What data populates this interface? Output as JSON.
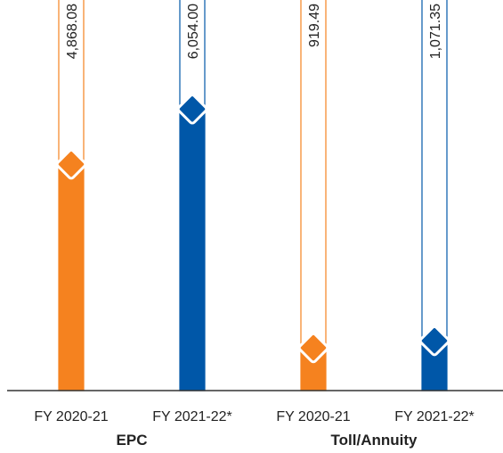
{
  "chart_data": {
    "type": "bar",
    "categories": [
      "FY 2020-21",
      "FY 2021-22*",
      "FY 2020-21",
      "FY 2021-22*"
    ],
    "values": [
      4868.08,
      6054.0,
      919.49,
      1071.35
    ],
    "value_labels": [
      "4,868.08",
      "6,054.00",
      "919.49",
      "1,071.35"
    ],
    "colors": [
      "#f5821f",
      "#0057a8",
      "#f5821f",
      "#0057a8"
    ],
    "groups": [
      "EPC",
      "Toll/Annuity"
    ],
    "ylim": [
      0,
      8400
    ]
  }
}
